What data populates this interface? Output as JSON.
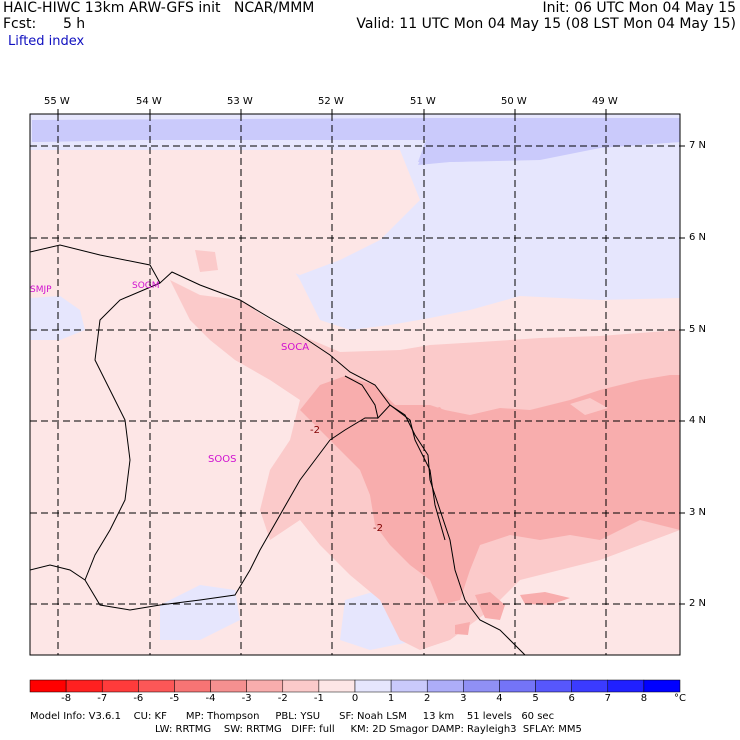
{
  "header": {
    "left_line1": "HAIC-HIWC 13km ARW-GFS init   NCAR/MMM",
    "left_line2": "Fcst:      5 h",
    "right_line1": "Init: 06 UTC Mon 04 May 15",
    "right_line2": "Valid: 11 UTC Mon 04 May 15 (08 LST Mon 04 May 15)",
    "variable": "Lifted index"
  },
  "map": {
    "lon_labels": [
      "55 W",
      "54 W",
      "53 W",
      "52 W",
      "51 W",
      "50 W",
      "49 W"
    ],
    "lat_labels": [
      "7 N",
      "6 N",
      "5 N",
      "4 N",
      "3 N",
      "2 N"
    ],
    "stations": [
      "SMJP",
      "SOGM",
      "SOCA",
      "SOOS"
    ],
    "contour_labels": [
      "-2",
      "-2"
    ]
  },
  "colorbar": {
    "unit": "°C",
    "ticks": [
      "-8",
      "-7",
      "-6",
      "-5",
      "-4",
      "-3",
      "-2",
      "-1",
      "0",
      "1",
      "2",
      "3",
      "4",
      "5",
      "6",
      "7",
      "8"
    ],
    "colors": [
      "#ff0000",
      "#ff2020",
      "#ff3b3b",
      "#fc5757",
      "#f77474",
      "#f59090",
      "#f8adad",
      "#fbcaca",
      "#fde6e6",
      "#e6e6fd",
      "#cacafb",
      "#adadf8",
      "#9090f5",
      "#7474f7",
      "#5757fc",
      "#3b3bff",
      "#2020ff",
      "#0000ff"
    ]
  },
  "footer": {
    "line1": "Model Info: V3.6.1    CU: KF      MP: Thompson     PBL: YSU      SF: Noah LSM     13 km    51 levels   60 sec",
    "line2": "LW: RRTMG    SW: RRTMG   DIFF: full     KM: 2D Smagor DAMP: Rayleigh3  SFLAY: MM5"
  }
}
